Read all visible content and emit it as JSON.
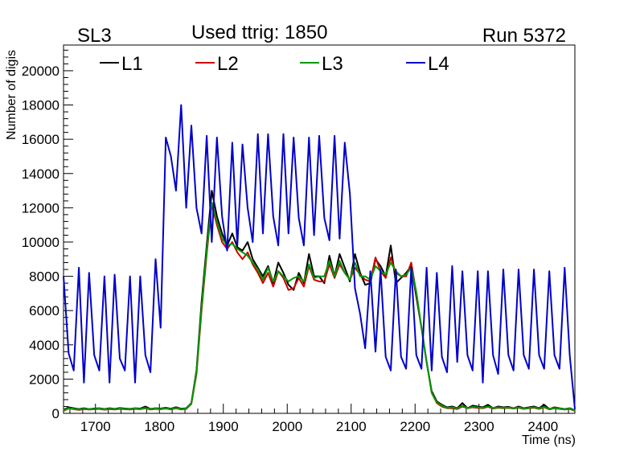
{
  "chart_data": {
    "type": "line",
    "title": "Used ttrig: 1850",
    "label_left": "SL3",
    "label_right": "Run 5372",
    "xlabel": "Time (ns)",
    "ylabel": "Number of digis",
    "xlim": [
      1650,
      2450
    ],
    "ylim": [
      0,
      21500
    ],
    "x_ticks": [
      1700,
      1800,
      1900,
      2000,
      2100,
      2200,
      2300,
      2400
    ],
    "y_ticks": [
      0,
      2000,
      4000,
      6000,
      8000,
      10000,
      12000,
      14000,
      16000,
      18000,
      20000
    ],
    "legend_placement": "top",
    "x": [
      1650,
      1658,
      1666,
      1674,
      1682,
      1690,
      1698,
      1706,
      1714,
      1722,
      1730,
      1738,
      1746,
      1754,
      1762,
      1770,
      1778,
      1786,
      1794,
      1802,
      1810,
      1818,
      1826,
      1834,
      1842,
      1850,
      1858,
      1866,
      1874,
      1882,
      1890,
      1898,
      1906,
      1914,
      1922,
      1930,
      1938,
      1946,
      1954,
      1962,
      1970,
      1978,
      1986,
      1994,
      2002,
      2010,
      2018,
      2026,
      2034,
      2042,
      2050,
      2058,
      2066,
      2074,
      2082,
      2090,
      2098,
      2106,
      2114,
      2122,
      2130,
      2138,
      2146,
      2154,
      2162,
      2170,
      2178,
      2186,
      2194,
      2202,
      2210,
      2218,
      2226,
      2234,
      2242,
      2250,
      2258,
      2266,
      2274,
      2282,
      2290,
      2298,
      2306,
      2314,
      2322,
      2330,
      2338,
      2346,
      2354,
      2362,
      2370,
      2378,
      2386,
      2394,
      2402,
      2410,
      2418,
      2426,
      2434,
      2442,
      2450
    ],
    "series": [
      {
        "name": "L1",
        "color": "#000000",
        "values": [
          200,
          350,
          300,
          250,
          300,
          250,
          280,
          300,
          250,
          300,
          260,
          310,
          280,
          260,
          300,
          280,
          400,
          260,
          300,
          280,
          330,
          270,
          360,
          270,
          300,
          600,
          2500,
          6500,
          9800,
          13000,
          11500,
          10500,
          9800,
          10500,
          9700,
          9500,
          10000,
          9000,
          8500,
          8000,
          8600,
          7600,
          8800,
          8200,
          7500,
          7200,
          8200,
          7600,
          9300,
          8000,
          8000,
          7600,
          9200,
          8000,
          9300,
          8500,
          7700,
          9300,
          8200,
          7500,
          7600,
          9000,
          8600,
          8000,
          9800,
          7600,
          7900,
          8200,
          8600,
          6800,
          5000,
          3000,
          1300,
          700,
          500,
          350,
          400,
          300,
          600,
          300,
          450,
          400,
          350,
          500,
          300,
          400,
          350,
          380,
          300,
          400,
          300,
          350,
          400,
          300,
          500,
          250,
          350,
          300,
          250,
          300,
          180
        ]
      },
      {
        "name": "L2",
        "color": "#cc0000",
        "values": [
          150,
          280,
          250,
          200,
          250,
          220,
          240,
          260,
          210,
          250,
          220,
          260,
          240,
          220,
          260,
          240,
          300,
          220,
          260,
          240,
          280,
          230,
          300,
          230,
          260,
          550,
          2300,
          6000,
          9300,
          12200,
          11000,
          10000,
          9600,
          10000,
          9400,
          9000,
          9400,
          8700,
          8200,
          7600,
          8200,
          7400,
          8300,
          7900,
          7200,
          7300,
          7900,
          7400,
          8600,
          7800,
          7700,
          7700,
          8700,
          7900,
          8700,
          8200,
          7800,
          8500,
          8100,
          7800,
          7700,
          9100,
          8300,
          7900,
          9100,
          8200,
          8000,
          8000,
          8800,
          7000,
          5000,
          3000,
          1200,
          600,
          400,
          300,
          300,
          250,
          400,
          300,
          350,
          320,
          300,
          380,
          280,
          330,
          300,
          320,
          280,
          330,
          260,
          300,
          330,
          260,
          350,
          230,
          300,
          260,
          220,
          260,
          150
        ]
      },
      {
        "name": "L3",
        "color": "#009900",
        "values": [
          180,
          300,
          270,
          220,
          270,
          240,
          260,
          280,
          230,
          270,
          240,
          280,
          260,
          240,
          280,
          260,
          320,
          240,
          280,
          260,
          300,
          250,
          320,
          250,
          280,
          580,
          2400,
          6200,
          9500,
          12300,
          11200,
          10200,
          9800,
          9900,
          9600,
          9400,
          9200,
          8800,
          8400,
          7800,
          8500,
          7700,
          8300,
          8000,
          7700,
          7900,
          8000,
          7700,
          8700,
          7900,
          8000,
          8000,
          8900,
          8000,
          8900,
          8200,
          7800,
          8800,
          8000,
          8000,
          7800,
          8600,
          8300,
          8100,
          8800,
          8300,
          8000,
          8100,
          8500,
          7100,
          5000,
          3000,
          1200,
          650,
          450,
          320,
          350,
          280,
          450,
          300,
          380,
          350,
          320,
          400,
          300,
          350,
          320,
          340,
          300,
          350,
          280,
          320,
          350,
          280,
          380,
          240,
          320,
          280,
          230,
          280,
          160
        ]
      },
      {
        "name": "L4",
        "color": "#0000cc",
        "values": [
          8000,
          3500,
          2500,
          8500,
          1800,
          8200,
          3400,
          2500,
          8000,
          1800,
          8100,
          3200,
          2500,
          8000,
          1800,
          8000,
          3400,
          2400,
          9000,
          5000,
          16100,
          15000,
          13000,
          18000,
          12000,
          16800,
          12000,
          10500,
          16200,
          10000,
          16100,
          11500,
          9500,
          15800,
          9800,
          15700,
          12000,
          10000,
          16300,
          10500,
          16300,
          11500,
          9800,
          16300,
          10500,
          16100,
          11400,
          9800,
          16100,
          10400,
          16200,
          11400,
          10100,
          16200,
          10200,
          15800,
          12800,
          7300,
          5800,
          3800,
          8300,
          3600,
          8400,
          3300,
          2500,
          8400,
          3300,
          2600,
          8500,
          3400,
          2600,
          8500,
          2500,
          8200,
          3300,
          2400,
          8600,
          3000,
          8300,
          3400,
          2500,
          8300,
          1800,
          8300,
          3400,
          2300,
          8400,
          3400,
          2500,
          8400,
          3400,
          2600,
          8400,
          3400,
          2600,
          8300,
          3400,
          2600,
          8500,
          3400,
          250
        ]
      }
    ]
  }
}
